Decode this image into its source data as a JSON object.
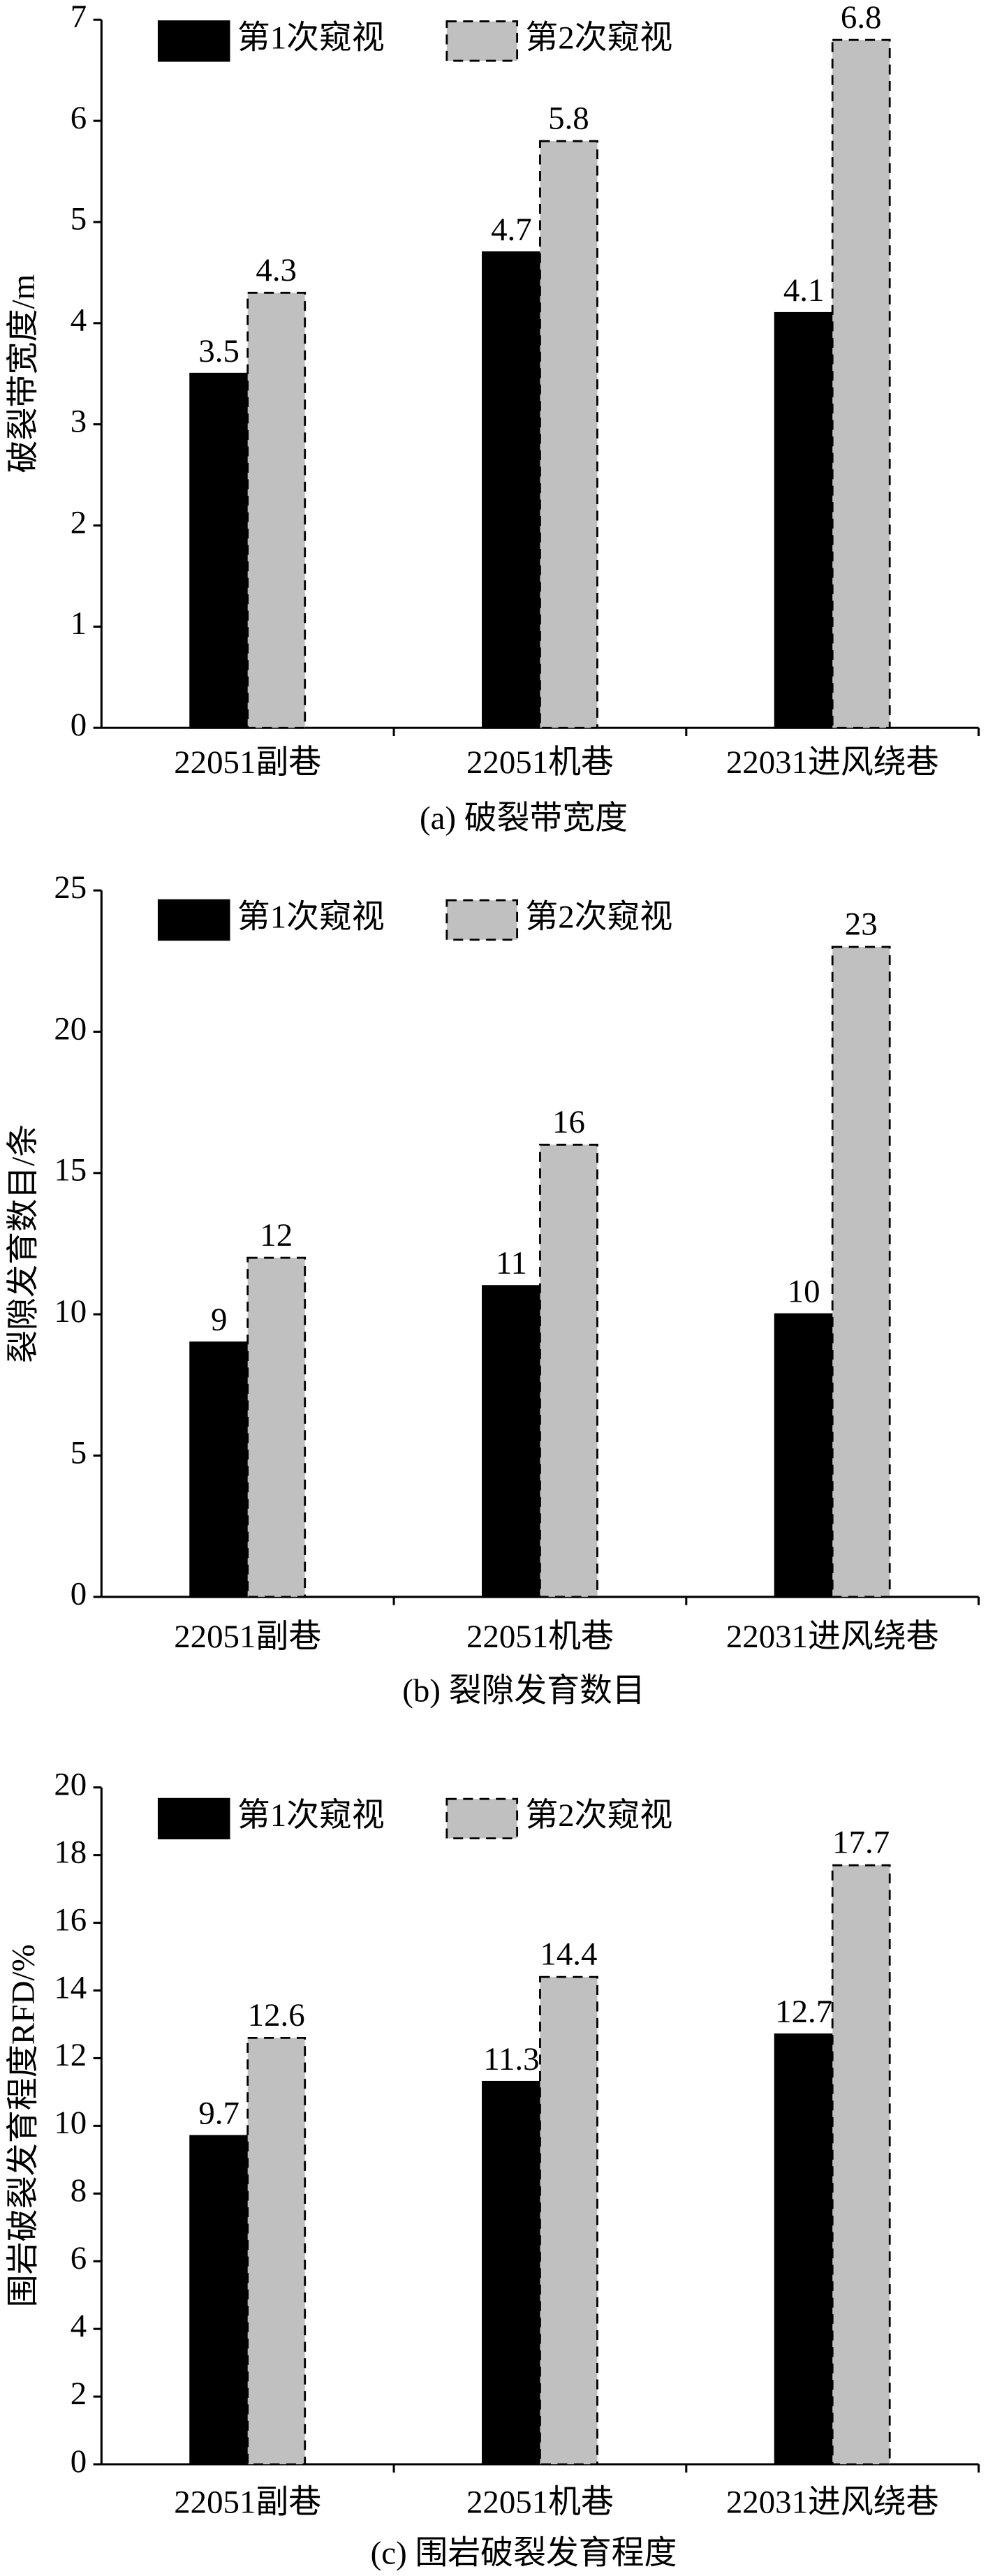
{
  "chart_data": [
    {
      "type": "bar",
      "title": "(a) 破裂带宽度",
      "ylabel": "破裂带宽度/m",
      "categories": [
        "22051副巷",
        "22051机巷",
        "22031进风绕巷"
      ],
      "series": [
        {
          "name": "第1次窥视",
          "color": "#000000",
          "values": [
            3.5,
            4.7,
            4.1
          ]
        },
        {
          "name": "第2次窥视",
          "color": "#c0c0c0",
          "values": [
            4.3,
            5.8,
            6.8
          ]
        }
      ],
      "ylim": [
        0,
        7
      ],
      "yticks": [
        0,
        1,
        2,
        3,
        4,
        5,
        6,
        7
      ]
    },
    {
      "type": "bar",
      "title": "(b) 裂隙发育数目",
      "ylabel": "裂隙发育数目/条",
      "categories": [
        "22051副巷",
        "22051机巷",
        "22031进风绕巷"
      ],
      "series": [
        {
          "name": "第1次窥视",
          "color": "#000000",
          "values": [
            9,
            11,
            10
          ]
        },
        {
          "name": "第2次窥视",
          "color": "#c0c0c0",
          "values": [
            12,
            16,
            23
          ]
        }
      ],
      "ylim": [
        0,
        25
      ],
      "yticks": [
        0,
        5,
        10,
        15,
        20,
        25
      ]
    },
    {
      "type": "bar",
      "title": "(c) 围岩破裂发育程度",
      "ylabel": "围岩破裂发育程度RFD/%",
      "categories": [
        "22051副巷",
        "22051机巷",
        "22031进风绕巷"
      ],
      "series": [
        {
          "name": "第1次窥视",
          "color": "#000000",
          "values": [
            9.7,
            11.3,
            12.7
          ]
        },
        {
          "name": "第2次窥视",
          "color": "#c0c0c0",
          "values": [
            12.6,
            14.4,
            17.7
          ]
        }
      ],
      "ylim": [
        0,
        20
      ],
      "yticks": [
        0,
        2,
        4,
        6,
        8,
        10,
        12,
        14,
        16,
        18,
        20
      ]
    }
  ]
}
